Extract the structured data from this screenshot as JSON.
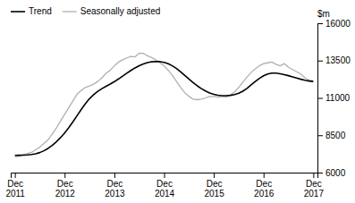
{
  "chart_data": {
    "type": "line",
    "ylabel": "$m",
    "categories": [
      "Dec\n2011",
      null,
      null,
      null,
      null,
      null,
      null,
      null,
      null,
      null,
      null,
      null,
      "Dec\n2012",
      null,
      null,
      null,
      null,
      null,
      null,
      null,
      null,
      null,
      null,
      null,
      "Dec\n2013",
      null,
      null,
      null,
      null,
      null,
      null,
      null,
      null,
      null,
      null,
      null,
      "Dec\n2014",
      null,
      null,
      null,
      null,
      null,
      null,
      null,
      null,
      null,
      null,
      null,
      "Dec\n2015",
      null,
      null,
      null,
      null,
      null,
      null,
      null,
      null,
      null,
      null,
      null,
      "Dec\n2016",
      null,
      null,
      null,
      null,
      null,
      null,
      null,
      null,
      null,
      null,
      null,
      "Dec\n2017"
    ],
    "series": [
      {
        "name": "Trend",
        "color": "#000000",
        "values": [
          7150,
          7160,
          7170,
          7185,
          7210,
          7260,
          7340,
          7460,
          7620,
          7820,
          8060,
          8340,
          8650,
          9010,
          9400,
          9810,
          10220,
          10610,
          10950,
          11220,
          11440,
          11620,
          11780,
          11930,
          12090,
          12270,
          12460,
          12650,
          12840,
          13010,
          13160,
          13270,
          13360,
          13420,
          13440,
          13430,
          13380,
          13290,
          13150,
          12970,
          12750,
          12510,
          12270,
          12030,
          11810,
          11620,
          11460,
          11330,
          11240,
          11180,
          11150,
          11150,
          11170,
          11220,
          11310,
          11450,
          11640,
          11870,
          12100,
          12310,
          12480,
          12600,
          12660,
          12660,
          12620,
          12560,
          12490,
          12410,
          12330,
          12250,
          12180,
          12130,
          12100
        ]
      },
      {
        "name": "Seasonally adjusted",
        "color": "#b0b0b0",
        "values": [
          7050,
          7090,
          7200,
          7280,
          7350,
          7530,
          7700,
          7950,
          8200,
          8580,
          8980,
          9450,
          9900,
          10350,
          10800,
          11250,
          11500,
          11700,
          11800,
          11920,
          12100,
          12350,
          12650,
          12850,
          13150,
          13400,
          13550,
          13680,
          13780,
          13750,
          14000,
          13980,
          13820,
          13700,
          13550,
          13350,
          13150,
          12850,
          12500,
          12100,
          11700,
          11350,
          11100,
          10920,
          10880,
          10920,
          11000,
          11100,
          11100,
          11050,
          11100,
          11050,
          11200,
          11400,
          11700,
          12050,
          12400,
          12700,
          12950,
          13150,
          13300,
          13350,
          13400,
          13250,
          13150,
          13300,
          13050,
          12900,
          12750,
          12600,
          12350,
          12200,
          12150
        ]
      }
    ],
    "ylim": [
      6000,
      16000
    ],
    "yticks": [
      6000,
      8500,
      11000,
      13500,
      16000
    ],
    "grid": false,
    "legend": "top-left"
  }
}
